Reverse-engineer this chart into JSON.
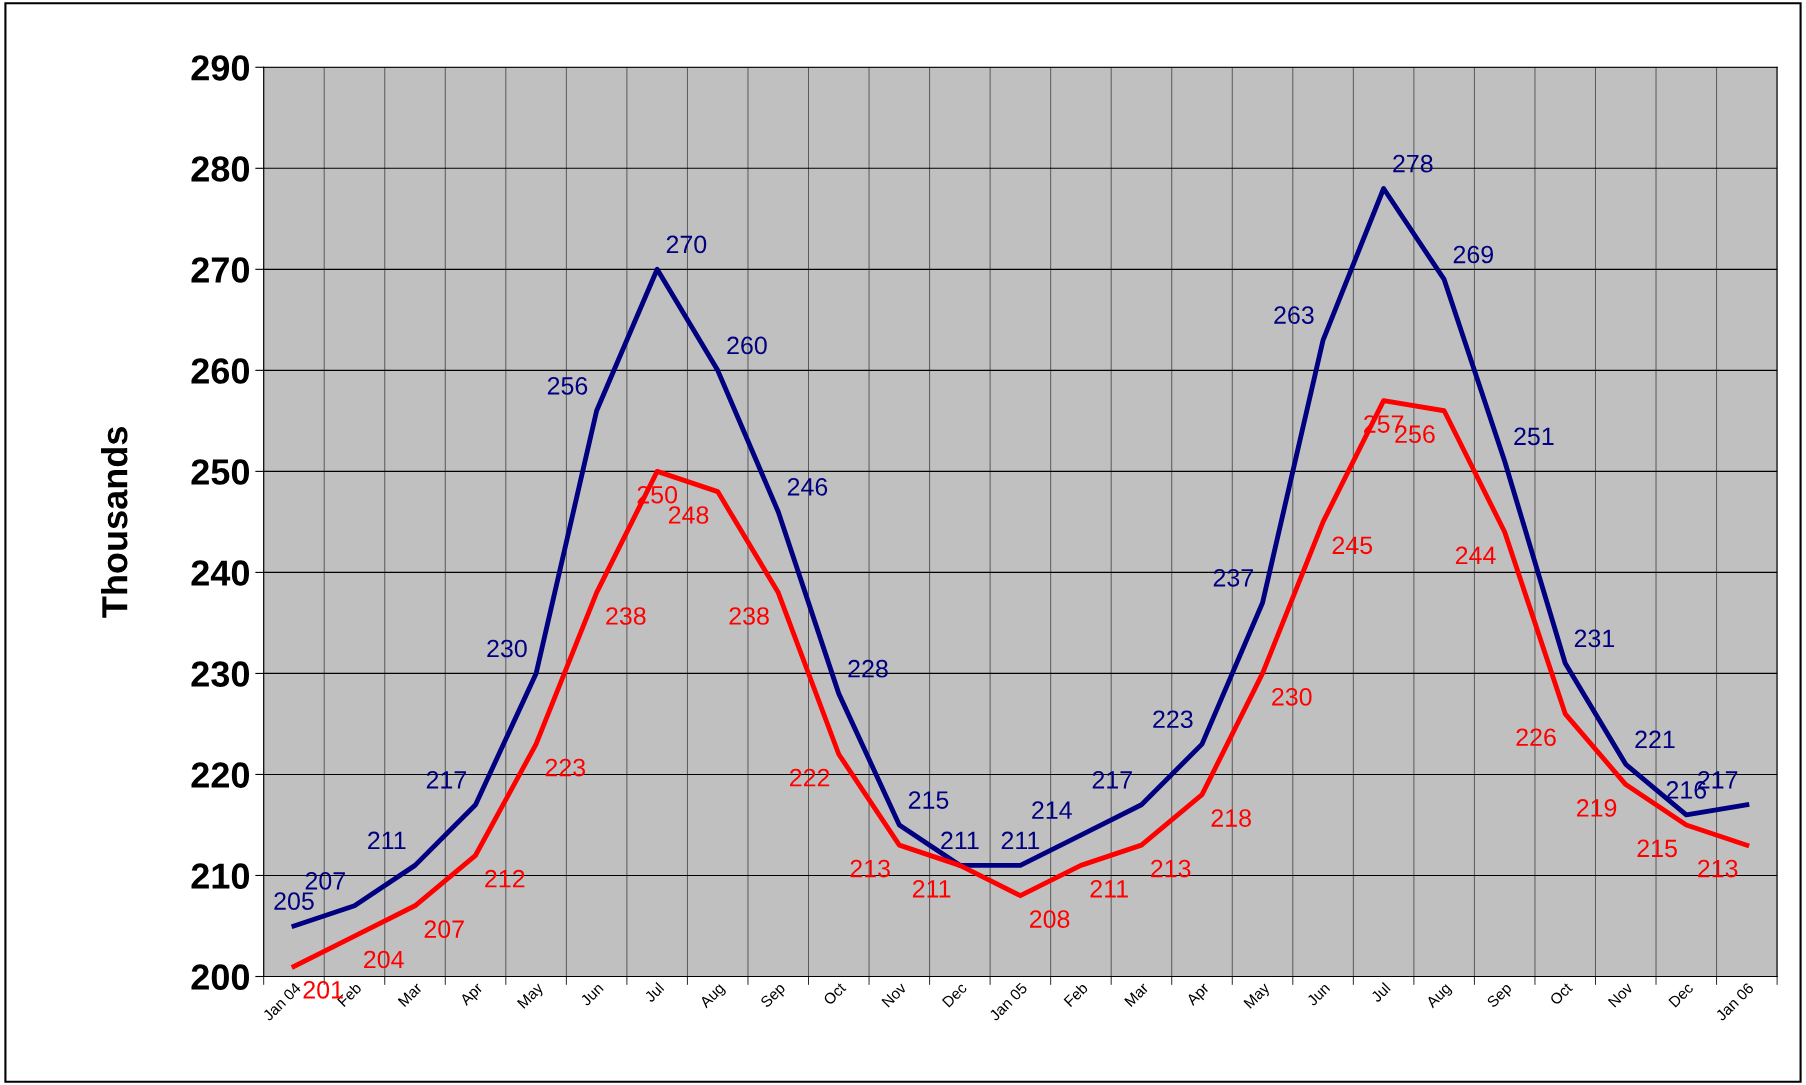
{
  "chart_data": {
    "type": "line",
    "ylabel": "Thousands",
    "categories": [
      "Jan 04",
      "Feb",
      "Mar",
      "Apr",
      "May",
      "Jun",
      "Jul",
      "Aug",
      "Sep",
      "Oct",
      "Nov",
      "Dec",
      "Jan 05",
      "Feb",
      "Mar",
      "Apr",
      "May",
      "Jun",
      "Jul",
      "Aug",
      "Sep",
      "Oct",
      "Nov",
      "Dec",
      "Jan 06"
    ],
    "series": [
      {
        "color": "#000080",
        "values": [
          205,
          207,
          211,
          217,
          230,
          256,
          270,
          260,
          246,
          228,
          215,
          211,
          211,
          214,
          217,
          223,
          237,
          263,
          278,
          269,
          251,
          231,
          221,
          216,
          217
        ]
      },
      {
        "color": "#ff0000",
        "values": [
          201,
          204,
          207,
          212,
          223,
          238,
          250,
          248,
          238,
          222,
          213,
          211,
          208,
          211,
          213,
          218,
          230,
          245,
          257,
          256,
          244,
          226,
          219,
          215,
          213
        ]
      }
    ],
    "ylim": [
      200,
      290
    ],
    "yticks": [
      200,
      210,
      220,
      230,
      240,
      250,
      260,
      270,
      280,
      290
    ],
    "grid": true,
    "data_labels": true,
    "marker": "none",
    "line_style": "solid"
  }
}
